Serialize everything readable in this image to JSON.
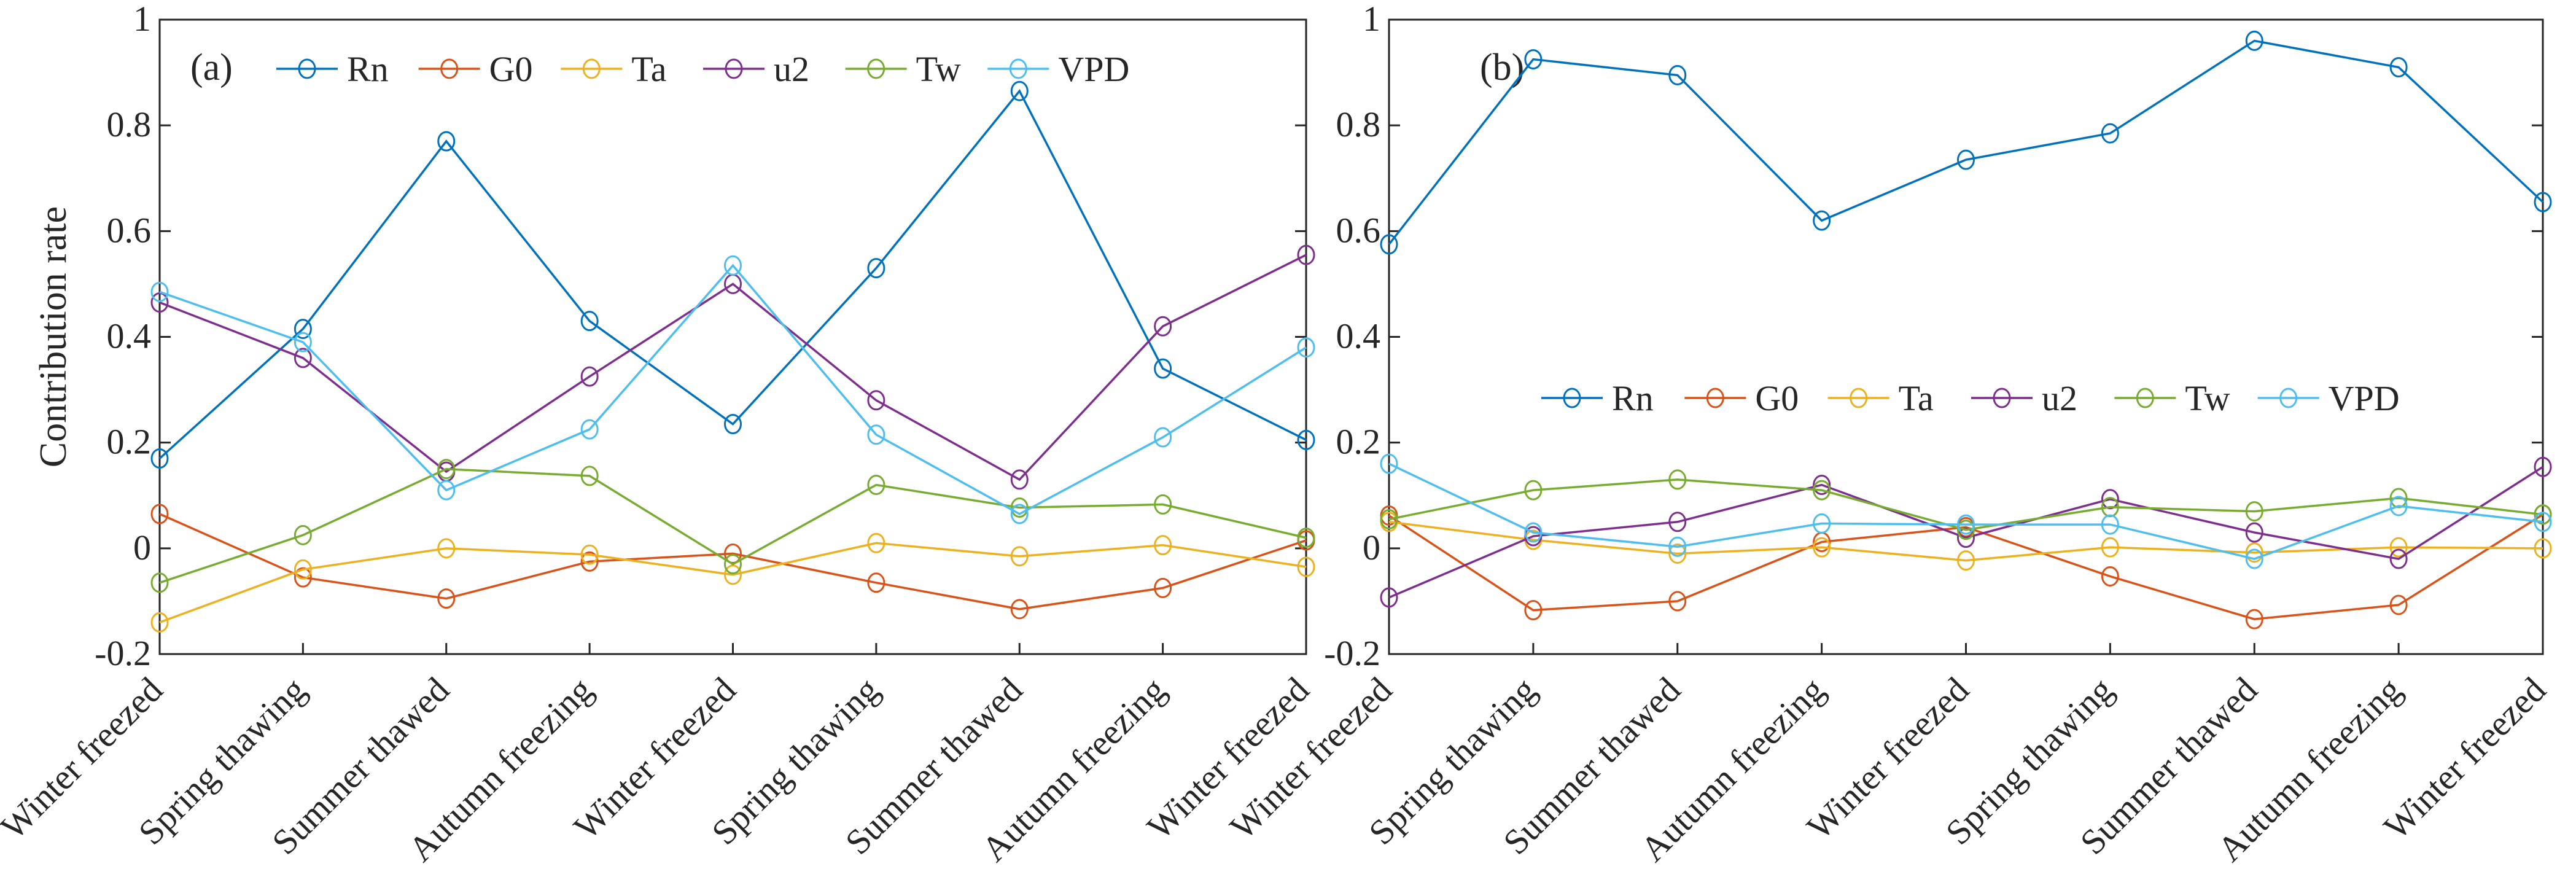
{
  "chart_data": [
    {
      "type": "line",
      "panel_label": "(a)",
      "ylabel": "Contribution rate",
      "ylim": [
        -0.2,
        1
      ],
      "yticks": [
        "-0.2",
        "0",
        "0.2",
        "0.4",
        "0.6",
        "0.8",
        "1"
      ],
      "ytick_values": [
        -0.2,
        0,
        0.2,
        0.4,
        0.6,
        0.8,
        1
      ],
      "categories": [
        "Winter freezed",
        "Spring thawing",
        "Summer thawed",
        "Autumn freezing",
        "Winter freezed",
        "Spring thawing",
        "Summer thawed",
        "Autumn freezing",
        "Winter freezed"
      ],
      "legend_position": "top",
      "series": [
        {
          "name": "Rn",
          "color": "#0072BD",
          "values": [
            0.17,
            0.415,
            0.77,
            0.43,
            0.235,
            0.53,
            0.865,
            0.34,
            0.205
          ]
        },
        {
          "name": "G0",
          "color": "#D95319",
          "values": [
            0.065,
            -0.055,
            -0.095,
            -0.025,
            -0.01,
            -0.065,
            -0.115,
            -0.075,
            0.015
          ]
        },
        {
          "name": "Ta",
          "color": "#EDB120",
          "values": [
            -0.14,
            -0.04,
            0.0,
            -0.012,
            -0.05,
            0.01,
            -0.015,
            0.006,
            -0.035
          ]
        },
        {
          "name": "u2",
          "color": "#7E2F8E",
          "values": [
            0.465,
            0.36,
            0.145,
            0.325,
            0.5,
            0.28,
            0.13,
            0.42,
            0.555
          ]
        },
        {
          "name": "Tw",
          "color": "#77AC30",
          "values": [
            -0.065,
            0.025,
            0.15,
            0.137,
            -0.03,
            0.12,
            0.077,
            0.083,
            0.02
          ]
        },
        {
          "name": "VPD",
          "color": "#4DBEEE",
          "values": [
            0.485,
            0.39,
            0.11,
            0.225,
            0.535,
            0.215,
            0.065,
            0.21,
            0.38
          ]
        }
      ]
    },
    {
      "type": "line",
      "panel_label": "(b)",
      "ylabel": "",
      "ylim": [
        -0.2,
        1
      ],
      "yticks": [
        "-0.2",
        "0",
        "0.2",
        "0.4",
        "0.6",
        "0.8",
        "1"
      ],
      "ytick_values": [
        -0.2,
        0,
        0.2,
        0.4,
        0.6,
        0.8,
        1
      ],
      "categories": [
        "Winter freezed",
        "Spring thawing",
        "Summer thawed",
        "Autumn freezing",
        "Winter freezed",
        "Spring thawing",
        "Summer thawed",
        "Autumn freezing",
        "Winter freezed"
      ],
      "legend_position": "center",
      "series": [
        {
          "name": "Rn",
          "color": "#0072BD",
          "values": [
            0.575,
            0.925,
            0.895,
            0.62,
            0.735,
            0.785,
            0.96,
            0.91,
            0.655
          ]
        },
        {
          "name": "G0",
          "color": "#D95319",
          "values": [
            0.062,
            -0.117,
            -0.1,
            0.012,
            0.04,
            -0.053,
            -0.134,
            -0.107,
            0.064
          ]
        },
        {
          "name": "Ta",
          "color": "#EDB120",
          "values": [
            0.05,
            0.016,
            -0.01,
            0.002,
            -0.023,
            0.002,
            -0.008,
            0.002,
            0.0
          ]
        },
        {
          "name": "u2",
          "color": "#7E2F8E",
          "values": [
            -0.093,
            0.023,
            0.05,
            0.12,
            0.02,
            0.093,
            0.03,
            -0.02,
            0.154
          ]
        },
        {
          "name": "Tw",
          "color": "#77AC30",
          "values": [
            0.055,
            0.11,
            0.13,
            0.11,
            0.035,
            0.078,
            0.07,
            0.095,
            0.064
          ]
        },
        {
          "name": "VPD",
          "color": "#4DBEEE",
          "values": [
            0.16,
            0.03,
            0.003,
            0.047,
            0.045,
            0.045,
            -0.02,
            0.08,
            0.05
          ]
        }
      ]
    }
  ]
}
